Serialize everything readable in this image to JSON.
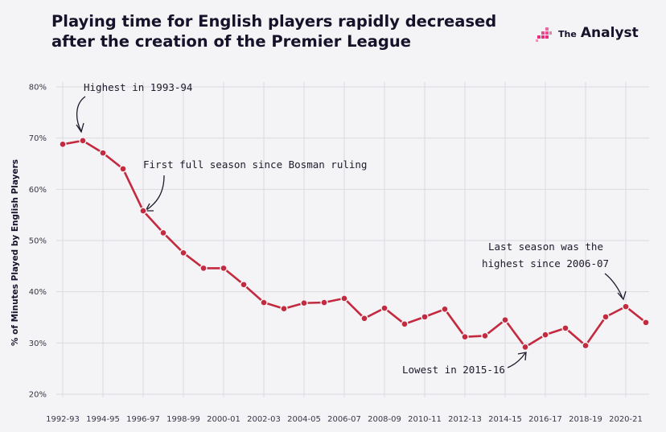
{
  "header": {
    "title_line1": "Playing time for English players rapidly decreased",
    "title_line2": "after the creation of the Premier League"
  },
  "logo": {
    "the": "The",
    "name": "Analyst",
    "brand_color": "#e6307a"
  },
  "chart_data": {
    "type": "line",
    "title": "Playing time for English players rapidly decreased after the creation of the Premier League",
    "ylabel": "% of Minutes Played by English Players",
    "xlabel": "",
    "ylim": [
      20,
      80
    ],
    "yticks": [
      "20%",
      "30%",
      "40%",
      "50%",
      "60%",
      "70%",
      "80%"
    ],
    "x_tick_labels": [
      "1992-93",
      "1994-95",
      "1996-97",
      "1998-99",
      "2000-01",
      "2002-03",
      "2004-05",
      "2006-07",
      "2008-09",
      "2010-11",
      "2012-13",
      "2014-15",
      "2016-17",
      "2018-19",
      "2020-21"
    ],
    "x": [
      "1992-93",
      "1993-94",
      "1994-95",
      "1995-96",
      "1996-97",
      "1997-98",
      "1998-99",
      "1999-00",
      "2000-01",
      "2001-02",
      "2002-03",
      "2003-04",
      "2004-05",
      "2005-06",
      "2006-07",
      "2007-08",
      "2008-09",
      "2009-10",
      "2010-11",
      "2011-12",
      "2012-13",
      "2013-14",
      "2014-15",
      "2015-16",
      "2016-17",
      "2017-18",
      "2018-19",
      "2019-20",
      "2020-21",
      "2021-22"
    ],
    "values": [
      68.8,
      69.5,
      67.1,
      64.0,
      55.8,
      51.5,
      47.6,
      44.6,
      44.6,
      41.4,
      37.9,
      36.7,
      37.8,
      37.9,
      38.7,
      34.8,
      36.8,
      33.7,
      35.1,
      36.6,
      31.2,
      31.4,
      34.5,
      29.2,
      31.6,
      32.9,
      29.5,
      35.1,
      37.1,
      34.0
    ],
    "color": "#c3293f",
    "grid": true,
    "legend": "none",
    "annotations": [
      {
        "text": "Highest in 1993-94",
        "x": "1993-94"
      },
      {
        "text": "First full season since Bosman ruling",
        "x": "1996-97"
      },
      {
        "text": "Last season was the",
        "text2": "highest since 2006-07",
        "x": "2020-21"
      },
      {
        "text": "Lowest in 2015-16",
        "x": "2015-16"
      }
    ]
  }
}
